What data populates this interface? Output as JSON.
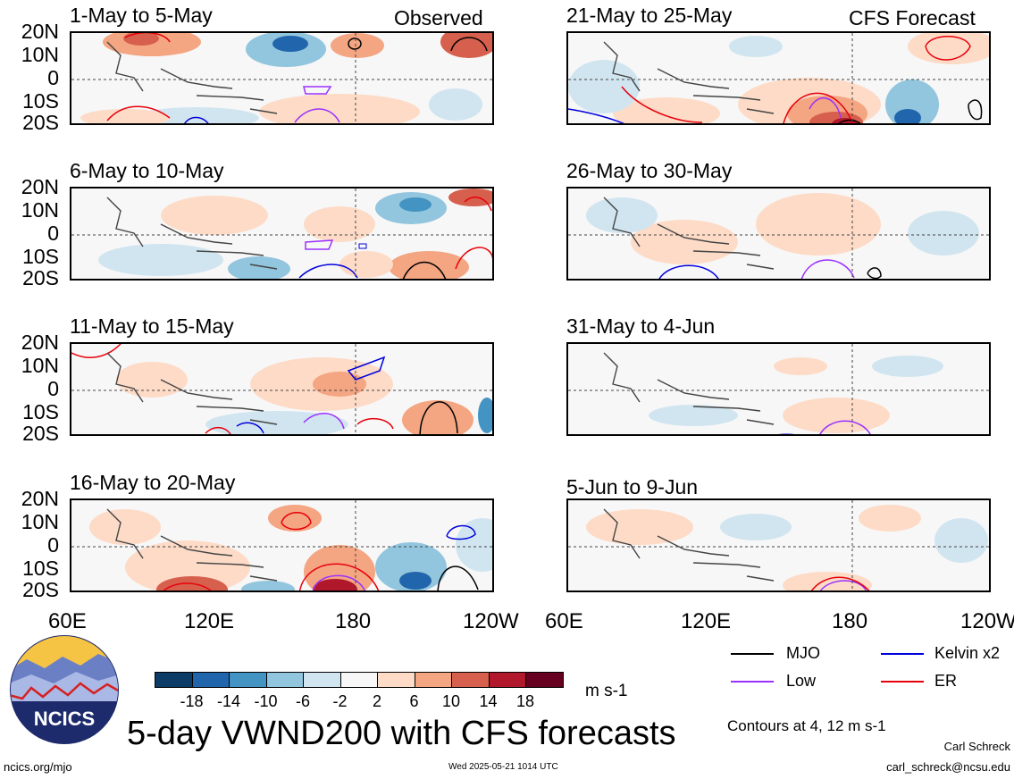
{
  "headers": {
    "left": "Observed",
    "right": "CFS Forecast"
  },
  "panels": [
    {
      "title": "1-May to 5-May"
    },
    {
      "title": "6-May to 10-May"
    },
    {
      "title": "11-May to 15-May"
    },
    {
      "title": "16-May to 20-May"
    },
    {
      "title": "21-May to 25-May"
    },
    {
      "title": "26-May to 30-May"
    },
    {
      "title": "31-May to 4-Jun"
    },
    {
      "title": "5-Jun to 9-Jun"
    }
  ],
  "lat_labels": [
    "20N",
    "10N",
    "0",
    "10S",
    "20S"
  ],
  "lon_labels": [
    "60E",
    "120E",
    "180",
    "120W"
  ],
  "colorbar": {
    "colors": [
      "#0b3b66",
      "#2166ac",
      "#4393c3",
      "#92c5de",
      "#d1e5f0",
      "#f7f7f7",
      "#fddbc7",
      "#f4a582",
      "#d6604d",
      "#b2182b",
      "#67001f"
    ],
    "labels": [
      "-18",
      "-14",
      "-10",
      "-6",
      "-2",
      "2",
      "6",
      "10",
      "14",
      "18"
    ],
    "units": "m s-1"
  },
  "legend": [
    {
      "label": "MJO",
      "color": "#000000"
    },
    {
      "label": "Kelvin x2",
      "color": "#0000dd"
    },
    {
      "label": "Low",
      "color": "#9b30ff"
    },
    {
      "label": "ER",
      "color": "#e8000b"
    }
  ],
  "contours_note": "Contours at 4, 12 m s-1",
  "main_title": "5-day VWND200 with CFS forecasts",
  "logo_text": "NCICS",
  "footer": {
    "left": "ncics.org/mjo",
    "center": "Wed 2025-05-21 1014 UTC",
    "author": "Carl Schreck",
    "email": "carl_schreck@ncsu.edu"
  }
}
